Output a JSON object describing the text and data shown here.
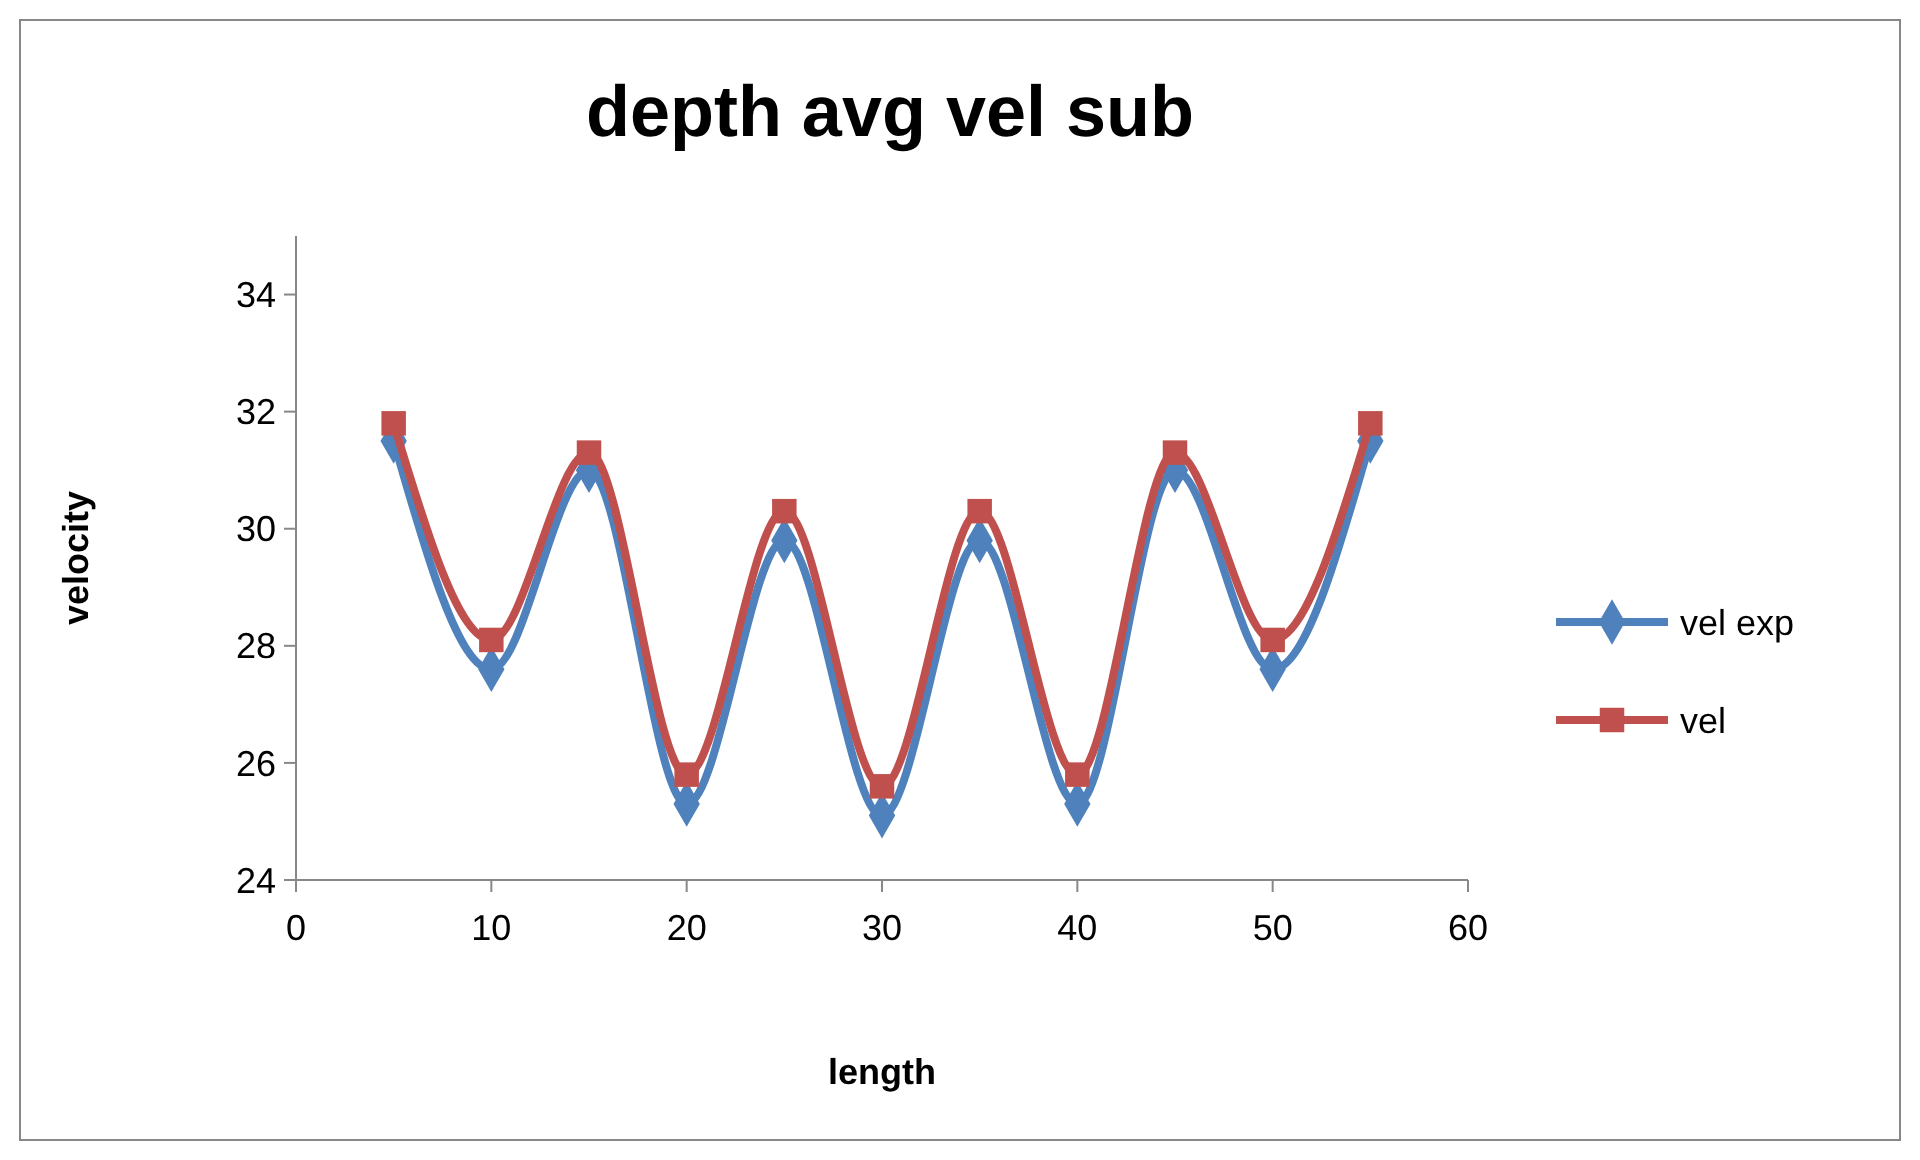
{
  "chart_data": {
    "type": "line",
    "title": "depth avg vel sub",
    "xlabel": "length",
    "ylabel": "velocity",
    "x": [
      5,
      10,
      15,
      20,
      25,
      30,
      35,
      40,
      45,
      50,
      55
    ],
    "series": [
      {
        "name": "vel exp",
        "color": "#4f81bd",
        "marker": "diamond",
        "values": [
          31.5,
          27.6,
          31.0,
          25.3,
          29.8,
          25.1,
          29.8,
          25.3,
          31.0,
          27.6,
          31.5
        ]
      },
      {
        "name": "vel",
        "color": "#c0504d",
        "marker": "square",
        "values": [
          31.8,
          28.1,
          31.3,
          25.8,
          30.3,
          25.6,
          30.3,
          25.8,
          31.3,
          28.1,
          31.8
        ]
      }
    ],
    "xlim": [
      0,
      60
    ],
    "xticks": [
      0,
      10,
      20,
      30,
      40,
      50,
      60
    ],
    "ylim": [
      24,
      35
    ],
    "yticks": [
      24,
      26,
      28,
      30,
      32,
      34
    ],
    "grid": false,
    "legend": "right",
    "line_style": "solid"
  }
}
